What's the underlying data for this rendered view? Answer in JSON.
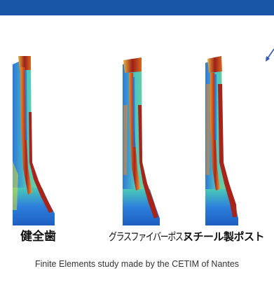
{
  "header": {
    "bar_color": "#1a56a8"
  },
  "figures": [
    {
      "label": "健全歯"
    },
    {
      "label": "グラスファイバーポスト"
    },
    {
      "label": "スチール製ポスト"
    }
  ],
  "caption": "Finite Elements study made by the CETIM of Nantes",
  "colors": {
    "stress_low": "#2b6fd6",
    "stress_mid": "#49c9b6",
    "stress_midhigh": "#c8d64a",
    "stress_high": "#f08a25",
    "stress_max": "#a8231a",
    "arrow": "#2f55b5"
  }
}
